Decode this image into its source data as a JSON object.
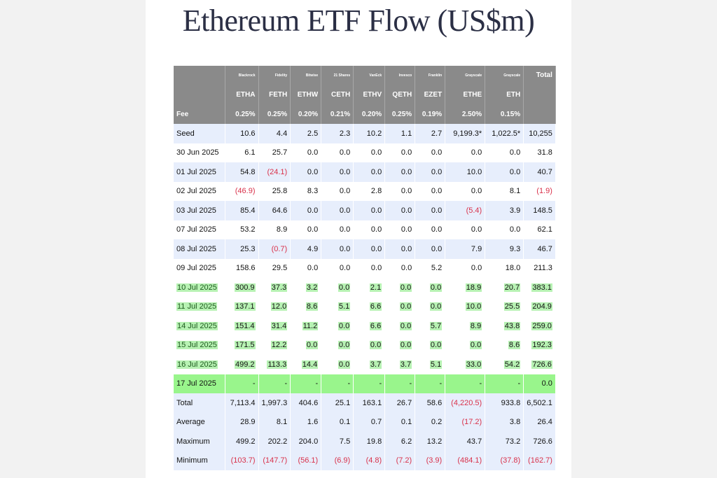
{
  "title": "Ethereum ETF Flow (US$m)",
  "columns": [
    {
      "issuer": "Blackrock",
      "ticker": "ETHA",
      "fee": "0.25%"
    },
    {
      "issuer": "Fidelity",
      "ticker": "FETH",
      "fee": "0.25%"
    },
    {
      "issuer": "Bitwise",
      "ticker": "ETHW",
      "fee": "0.20%"
    },
    {
      "issuer": "21 Shares",
      "ticker": "CETH",
      "fee": "0.21%"
    },
    {
      "issuer": "VanEck",
      "ticker": "ETHV",
      "fee": "0.20%"
    },
    {
      "issuer": "Invesco",
      "ticker": "QETH",
      "fee": "0.25%"
    },
    {
      "issuer": "Franklin",
      "ticker": "EZET",
      "fee": "0.19%"
    },
    {
      "issuer": "Grayscale",
      "ticker": "ETHE",
      "fee": "2.50%"
    },
    {
      "issuer": "Grayscale",
      "ticker": "ETH",
      "fee": "0.15%"
    }
  ],
  "total_label": "Total",
  "fee_label": "Fee",
  "rows": [
    {
      "label": "Seed",
      "style": "blue",
      "values": [
        "10.6",
        "4.4",
        "2.5",
        "2.3",
        "10.2",
        "1.1",
        "2.7",
        "9,199.3*",
        "1,022.5*",
        "10,255"
      ]
    },
    {
      "label": "30 Jun 2025",
      "style": "white",
      "values": [
        "6.1",
        "25.7",
        "0.0",
        "0.0",
        "0.0",
        "0.0",
        "0.0",
        "0.0",
        "0.0",
        "31.8"
      ]
    },
    {
      "label": "01 Jul 2025",
      "style": "blue",
      "values": [
        "54.8",
        "(24.1)",
        "0.0",
        "0.0",
        "0.0",
        "0.0",
        "0.0",
        "10.0",
        "0.0",
        "40.7"
      ]
    },
    {
      "label": "02 Jul 2025",
      "style": "white",
      "values": [
        "(46.9)",
        "25.8",
        "8.3",
        "0.0",
        "2.8",
        "0.0",
        "0.0",
        "0.0",
        "8.1",
        "(1.9)"
      ]
    },
    {
      "label": "03 Jul 2025",
      "style": "blue",
      "values": [
        "85.4",
        "64.6",
        "0.0",
        "0.0",
        "0.0",
        "0.0",
        "0.0",
        "(5.4)",
        "3.9",
        "148.5"
      ]
    },
    {
      "label": "07 Jul 2025",
      "style": "white",
      "values": [
        "53.2",
        "8.9",
        "0.0",
        "0.0",
        "0.0",
        "0.0",
        "0.0",
        "0.0",
        "0.0",
        "62.1"
      ]
    },
    {
      "label": "08 Jul 2025",
      "style": "blue",
      "values": [
        "25.3",
        "(0.7)",
        "4.9",
        "0.0",
        "0.0",
        "0.0",
        "0.0",
        "7.9",
        "9.3",
        "46.7"
      ]
    },
    {
      "label": "09 Jul 2025",
      "style": "white",
      "values": [
        "158.6",
        "29.5",
        "0.0",
        "0.0",
        "0.0",
        "0.0",
        "5.2",
        "0.0",
        "18.0",
        "211.3"
      ]
    },
    {
      "label": "10 Jul 2025",
      "style": "green",
      "values": [
        "300.9",
        "37.3",
        "3.2",
        "0.0",
        "2.1",
        "0.0",
        "0.0",
        "18.9",
        "20.7",
        "383.1"
      ]
    },
    {
      "label": "11 Jul 2025",
      "style": "green",
      "values": [
        "137.1",
        "12.0",
        "8.6",
        "5.1",
        "6.6",
        "0.0",
        "0.0",
        "10.0",
        "25.5",
        "204.9"
      ]
    },
    {
      "label": "14 Jul 2025",
      "style": "green",
      "values": [
        "151.4",
        "31.4",
        "11.2",
        "0.0",
        "6.6",
        "0.0",
        "5.7",
        "8.9",
        "43.8",
        "259.0"
      ]
    },
    {
      "label": "15 Jul 2025",
      "style": "green",
      "values": [
        "171.5",
        "12.2",
        "0.0",
        "0.0",
        "0.0",
        "0.0",
        "0.0",
        "0.0",
        "8.6",
        "192.3"
      ]
    },
    {
      "label": "16 Jul 2025",
      "style": "green",
      "values": [
        "499.2",
        "113.3",
        "14.4",
        "0.0",
        "3.7",
        "3.7",
        "5.1",
        "33.0",
        "54.2",
        "726.6"
      ]
    },
    {
      "label": "17 Jul 2025",
      "style": "bright",
      "values": [
        "-",
        "-",
        "-",
        "-",
        "-",
        "-",
        "-",
        "-",
        "-",
        "0.0"
      ]
    },
    {
      "label": "Total",
      "style": "stat",
      "values": [
        "7,113.4",
        "1,997.3",
        "404.6",
        "25.1",
        "163.1",
        "26.7",
        "58.6",
        "(4,220.5)",
        "933.8",
        "6,502.1"
      ]
    },
    {
      "label": "Average",
      "style": "stat",
      "values": [
        "28.9",
        "8.1",
        "1.6",
        "0.1",
        "0.7",
        "0.1",
        "0.2",
        "(17.2)",
        "3.8",
        "26.4"
      ]
    },
    {
      "label": "Maximum",
      "style": "stat",
      "values": [
        "499.2",
        "202.2",
        "204.0",
        "7.5",
        "19.8",
        "6.2",
        "13.2",
        "43.7",
        "73.2",
        "726.6"
      ]
    },
    {
      "label": "Minimum",
      "style": "stat",
      "values": [
        "(103.7)",
        "(147.7)",
        "(56.1)",
        "(6.9)",
        "(4.8)",
        "(7.2)",
        "(3.9)",
        "(484.1)",
        "(37.8)",
        "(162.7)"
      ]
    }
  ],
  "colors": {
    "header_bg": "#8a8a8a",
    "row_blue": "#e7eefc",
    "highlight_green": "#b7f2b3",
    "bright_green": "#99f58c",
    "negative": "#d9314a",
    "title": "#2b2f45"
  }
}
